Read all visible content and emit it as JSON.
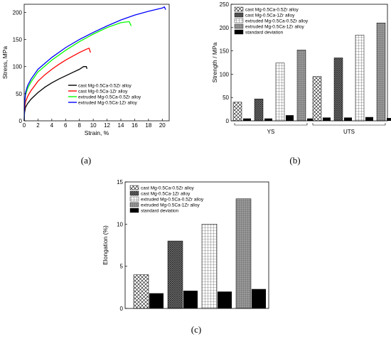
{
  "captions": {
    "a": "(a)",
    "b": "(b)",
    "c": "(c)"
  },
  "chart_data": [
    {
      "id": "a",
      "type": "line",
      "xlabel": "Strain, %",
      "ylabel": "Stress, MPa",
      "xlim": [
        0,
        21
      ],
      "ylim": [
        0,
        215
      ],
      "xticks": [
        0,
        2,
        4,
        6,
        8,
        10,
        12,
        14,
        16,
        18,
        20
      ],
      "yticks": [
        0,
        50,
        100,
        150,
        200
      ],
      "legend_position": "bottom-right",
      "series": [
        {
          "name": "cast Mg-0.5Ca-0.5Zr alloy",
          "color": "#000000",
          "x": [
            0,
            0.05,
            0.2,
            0.5,
            1,
            2,
            3,
            4,
            5,
            6,
            7,
            8,
            8.6,
            9.0,
            9.1
          ],
          "y": [
            0,
            15,
            25,
            32,
            40,
            52,
            62,
            70,
            77,
            83,
            89,
            95,
            100,
            100,
            96
          ]
        },
        {
          "name": "cast Mg-0.5Ca-1Zr alloy",
          "color": "#ff0000",
          "x": [
            0,
            0.05,
            0.2,
            0.5,
            1,
            2,
            3,
            4,
            5,
            6,
            7,
            8,
            9,
            9.4,
            9.6
          ],
          "y": [
            0,
            20,
            35,
            45,
            56,
            73,
            85,
            95,
            104,
            112,
            119,
            126,
            132,
            134,
            126
          ]
        },
        {
          "name": "extruded Mg-0.5Ca-0.5Zr alloy",
          "color": "#00ff00",
          "x": [
            0,
            0.05,
            0.2,
            0.5,
            1,
            2,
            4,
            6,
            8,
            10,
            12,
            14,
            15.2,
            15.5
          ],
          "y": [
            0,
            28,
            48,
            60,
            72,
            90,
            112,
            130,
            146,
            160,
            172,
            181,
            183,
            175
          ]
        },
        {
          "name": "extruded Mg-0.5Ca-1Zr alloy",
          "color": "#0000ff",
          "x": [
            0,
            0.05,
            0.2,
            0.5,
            1,
            2,
            4,
            6,
            8,
            10,
            12,
            14,
            16,
            18,
            20,
            20.3,
            20.5
          ],
          "y": [
            0,
            30,
            52,
            65,
            77,
            95,
            117,
            135,
            150,
            163,
            175,
            186,
            195,
            202,
            208,
            210,
            205
          ]
        }
      ]
    },
    {
      "id": "b",
      "type": "bar",
      "ylabel": "Strength / MPa",
      "ylim": [
        0,
        250
      ],
      "yticks": [
        0,
        50,
        100,
        150,
        200,
        250
      ],
      "categories": [
        "YS",
        "UTS"
      ],
      "legend_position": "top-left",
      "series": [
        {
          "name": "cast Mg-0.5Ca-0.5Zr alloy",
          "pattern": "crosshatch",
          "values": [
            40,
            95
          ]
        },
        {
          "name": "cast Mg-0.5Ca-1Zr alloy",
          "pattern": "dense",
          "values": [
            47,
            135
          ]
        },
        {
          "name": "extruded Mg-0.5Ca-0.5Zr alloy",
          "pattern": "grid",
          "values": [
            124,
            184
          ]
        },
        {
          "name": "extruded Mg-0.5Ca-1Zr alloy",
          "pattern": "gray",
          "values": [
            152,
            210
          ]
        },
        {
          "name": "standard deviation",
          "pattern": "solid",
          "values": [
            [
              5,
              5,
              12,
              5
            ],
            [
              7,
              7,
              8,
              6
            ]
          ]
        }
      ]
    },
    {
      "id": "c",
      "type": "bar",
      "ylabel": "Elongation (%)",
      "ylim": [
        0,
        15
      ],
      "yticks": [
        0,
        5,
        10,
        15
      ],
      "legend_position": "top-left",
      "series": [
        {
          "name": "cast Mg-0.5Ca-0.5Zr alloy",
          "pattern": "crosshatch",
          "values": [
            4
          ]
        },
        {
          "name": "cast Mg-0.5Ca-1Zr alloy",
          "pattern": "dense",
          "values": [
            8
          ]
        },
        {
          "name": "extruded Mg-0.5Ca-0.5Zr alloy",
          "pattern": "grid",
          "values": [
            10
          ]
        },
        {
          "name": "extruded Mg-0.5Ca-1Zr alloy",
          "pattern": "gray",
          "values": [
            13
          ]
        },
        {
          "name": "standard deviation",
          "pattern": "solid",
          "values": [
            1.8,
            2.1,
            2.0,
            2.3
          ]
        }
      ]
    }
  ]
}
